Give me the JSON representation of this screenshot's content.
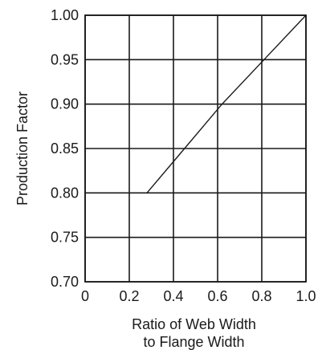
{
  "chart_data": {
    "type": "line",
    "title": "",
    "xlabel_lines": [
      "Ratio of Web Width",
      "to Flange Width"
    ],
    "ylabel": "Production Factor",
    "xlim": [
      0,
      1.0
    ],
    "ylim": [
      0.7,
      1.0
    ],
    "x_ticks": [
      0,
      0.2,
      0.4,
      0.6,
      0.8,
      1.0
    ],
    "x_tick_labels": [
      "0",
      "0.2",
      "0.4",
      "0.6",
      "0.8",
      "1.0"
    ],
    "y_ticks": [
      0.7,
      0.75,
      0.8,
      0.85,
      0.9,
      0.95,
      1.0
    ],
    "y_tick_labels": [
      "0.70",
      "0.75",
      "0.80",
      "0.85",
      "0.90",
      "0.95",
      "1.00"
    ],
    "grid": true,
    "legend": "none",
    "series": [
      {
        "x": [
          0.28,
          0.45,
          0.62,
          0.81,
          1.0
        ],
        "y": [
          0.8,
          0.85,
          0.9,
          0.95,
          1.0
        ]
      }
    ],
    "colors": {
      "line": "#1a1a1a",
      "background": "#ffffff"
    }
  }
}
